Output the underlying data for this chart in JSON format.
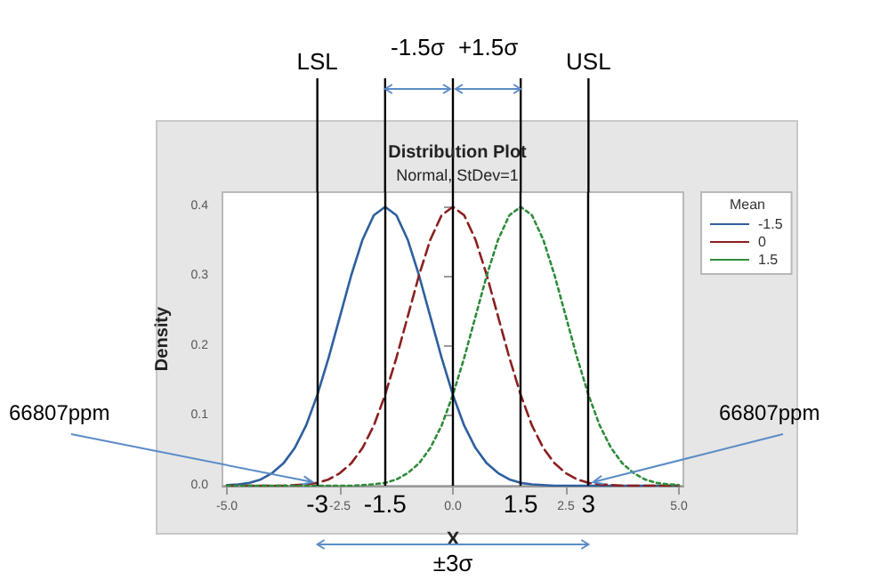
{
  "chart_data": {
    "type": "line",
    "title": "Distribution Plot",
    "subtitle": "Normal, StDev=1",
    "xlabel": "X",
    "ylabel": "Density",
    "legend_title": "Mean",
    "x": [
      -5,
      -4.75,
      -4.5,
      -4.25,
      -4,
      -3.75,
      -3.5,
      -3.25,
      -3,
      -2.75,
      -2.5,
      -2.25,
      -2,
      -1.75,
      -1.5,
      -1.25,
      -1,
      -0.75,
      -0.5,
      -0.25,
      0,
      0.25,
      0.5,
      0.75,
      1,
      1.25,
      1.5,
      1.75,
      2,
      2.25,
      2.5,
      2.75,
      3,
      3.25,
      3.5,
      3.75,
      4,
      4.25,
      4.5,
      4.75,
      5
    ],
    "series": [
      {
        "name": "-1.5",
        "color": "#2e5f9e",
        "line_style": "solid",
        "values": [
          0.001,
          0.002,
          0.004,
          0.009,
          0.018,
          0.032,
          0.054,
          0.086,
          0.13,
          0.183,
          0.242,
          0.301,
          0.352,
          0.387,
          0.399,
          0.387,
          0.352,
          0.301,
          0.242,
          0.183,
          0.13,
          0.086,
          0.054,
          0.032,
          0.018,
          0.009,
          0.004,
          0.002,
          0.001,
          0,
          0,
          0,
          0,
          0,
          0,
          0,
          0,
          0,
          0,
          0,
          0
        ]
      },
      {
        "name": "0",
        "color": "#8b1f1f",
        "line_style": "dashed",
        "values": [
          0,
          0,
          0,
          0,
          0,
          0,
          0.001,
          0.002,
          0.004,
          0.009,
          0.018,
          0.032,
          0.054,
          0.086,
          0.13,
          0.183,
          0.242,
          0.301,
          0.352,
          0.387,
          0.399,
          0.387,
          0.352,
          0.301,
          0.242,
          0.183,
          0.13,
          0.086,
          0.054,
          0.032,
          0.018,
          0.009,
          0.004,
          0.002,
          0.001,
          0,
          0,
          0,
          0,
          0,
          0
        ]
      },
      {
        "name": "1.5",
        "color": "#2e8b3a",
        "line_style": "dotted",
        "values": [
          0,
          0,
          0,
          0,
          0,
          0,
          0,
          0,
          0,
          0,
          0,
          0,
          0.001,
          0.002,
          0.004,
          0.009,
          0.018,
          0.032,
          0.054,
          0.086,
          0.13,
          0.183,
          0.242,
          0.301,
          0.352,
          0.387,
          0.399,
          0.387,
          0.352,
          0.301,
          0.242,
          0.183,
          0.13,
          0.086,
          0.054,
          0.032,
          0.018,
          0.009,
          0.004,
          0.002,
          0.001
        ]
      }
    ],
    "xlim": [
      -5.1,
      5.1
    ],
    "xticks": [
      {
        "value": -5,
        "label": "-5.0"
      },
      {
        "value": -2.5,
        "label": "-2.5"
      },
      {
        "value": 0,
        "label": "0.0"
      },
      {
        "value": 2.5,
        "label": "2.5"
      },
      {
        "value": 5,
        "label": "5.0"
      }
    ],
    "ylim": [
      0,
      0.42
    ],
    "yticks": [
      {
        "value": 0,
        "label": "0.0"
      },
      {
        "value": 0.1,
        "label": "0.1"
      },
      {
        "value": 0.2,
        "label": "0.2"
      },
      {
        "value": 0.3,
        "label": "0.3"
      },
      {
        "value": 0.4,
        "label": "0.4"
      }
    ],
    "ref_lines": [
      {
        "axis": "x",
        "value": -3,
        "label": "LSL",
        "color": "#000000"
      },
      {
        "axis": "x",
        "value": -1.5,
        "label": null,
        "color": "#000000"
      },
      {
        "axis": "x",
        "value": 0,
        "label": null,
        "color": "#000000"
      },
      {
        "axis": "x",
        "value": 1.5,
        "label": null,
        "color": "#000000"
      },
      {
        "axis": "x",
        "value": 3,
        "label": "USL",
        "color": "#000000"
      }
    ],
    "annotations": [
      {
        "text": "66807ppm",
        "x": -3.1,
        "y": 0.005
      },
      "-1.5σ",
      "+1.5σ",
      "±3σ",
      {
        "text": "66807ppm",
        "x": 3.1,
        "y": 0.005
      },
      "-3",
      "-1.5",
      "1.5",
      "3"
    ],
    "grid": false,
    "legend": "top right",
    "marker": "none"
  }
}
